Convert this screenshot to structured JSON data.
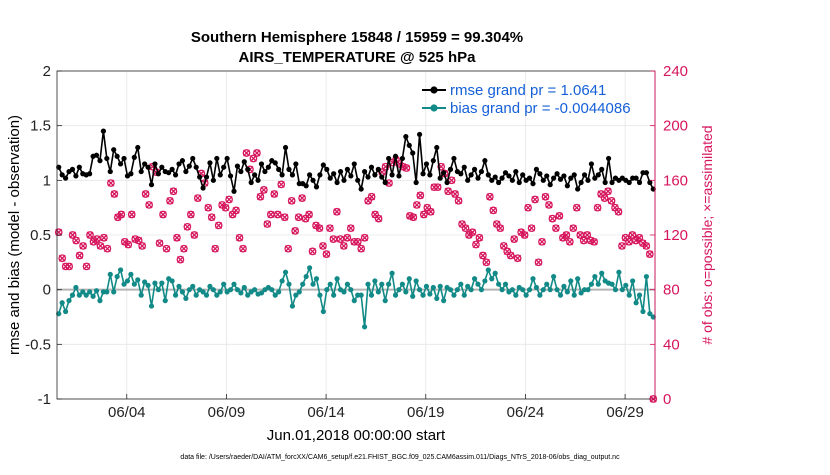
{
  "chart_data": {
    "type": "line",
    "title": "Southern Hemisphere 15848 / 15959 = 99.304%",
    "subtitle": "AIRS_TEMPERATURE @ 525 hPa",
    "xlabel": "Jun.01,2018 00:00:00 start",
    "ylabel": "rmse and bias (model - observation)",
    "ylabel_right": "# of obs: o=possible; ×=assimilated",
    "footer": "data file: /Users/raeder/DAI/ATM_forcXX/CAM6_setup/f.e21.FHIST_BGC.f09_025.CAM6assim.011/Diags_NTrS_2018-06/obs_diag_output.nc",
    "x_range_days": [
      0,
      30
    ],
    "ylim": [
      -1,
      2
    ],
    "ylim_right": [
      0,
      240
    ],
    "x_tick_labels": [
      {
        "day": 3.5,
        "label": "06/04"
      },
      {
        "day": 8.5,
        "label": "06/09"
      },
      {
        "day": 13.5,
        "label": "06/14"
      },
      {
        "day": 18.5,
        "label": "06/19"
      },
      {
        "day": 23.5,
        "label": "06/24"
      },
      {
        "day": 28.5,
        "label": "06/29"
      }
    ],
    "y_ticks_left": [
      "-1",
      "-0.5",
      "0",
      "0.5",
      "1",
      "1.5",
      "2"
    ],
    "y_ticks_right": [
      "0",
      "40",
      "80",
      "120",
      "160",
      "200",
      "240"
    ],
    "legend": [
      {
        "name": "rmse grand pr = 1.0641",
        "color": "#000000"
      },
      {
        "name": "bias grand pr = -0.0044086",
        "color": "#128a87"
      }
    ],
    "colors": {
      "rmse": "#000000",
      "bias": "#128a87",
      "obs": "#d6155c",
      "zero_line": "#b5b5b5",
      "grid": "#e6e6e6"
    },
    "series": [
      {
        "name": "rmse",
        "values": [
          1.12,
          1.05,
          1.02,
          1.08,
          1.1,
          1.04,
          1.12,
          1.06,
          1.05,
          1.06,
          1.22,
          1.23,
          1.18,
          1.45,
          1.2,
          1.08,
          1.28,
          1.22,
          1.15,
          1.2,
          1.04,
          1.06,
          1.21,
          1.3,
          1.08,
          1.15,
          1.12,
          0.96,
          1.15,
          1.06,
          1.12,
          1.08,
          1.07,
          1.1,
          1.05,
          1.15,
          1.18,
          1.08,
          1.13,
          1.2,
          1.12,
          1.03,
          0.93,
          1.03,
          1.16,
          1.0,
          1.2,
          1.05,
          1.12,
          1.2,
          1.04,
          0.9,
          1.13,
          1.08,
          1.17,
          1.1,
          0.98,
          1.05,
          1.0,
          1.15,
          1.08,
          1.12,
          1.18,
          1.16,
          1.1,
          1.05,
          1.3,
          1.1,
          1.05,
          1.15,
          0.97,
          0.97,
          0.95,
          1.05,
          1.0,
          0.94,
          1.05,
          1.14,
          1.1,
          1.02,
          1.06,
          0.98,
          1.08,
          1.0,
          1.1,
          1.04,
          1.15,
          1.0,
          0.92,
          1.08,
          1.03,
          1.12,
          1.05,
          1.1,
          1.03,
          0.98,
          1.2,
          1.05,
          1.22,
          1.04,
          1.2,
          1.4,
          1.32,
          1.25,
          0.98,
          1.42,
          1.06,
          1.15,
          1.05,
          1.18,
          1.3,
          1.02,
          1.07,
          0.98,
          1.1,
          1.2,
          1.08,
          1.06,
          1.12,
          1.0,
          1.05,
          1.1,
          1.02,
          1.08,
          1.18,
          1.05,
          1.0,
          1.03,
          0.98,
          1.02,
          1.07,
          1.04,
          1.0,
          1.08,
          0.98,
          1.05,
          1.0,
          1.02,
          0.97,
          1.1,
          1.06,
          1.0,
          1.04,
          0.96,
          1.02,
          1.06,
          1.01,
          1.04,
          0.95,
          1.02,
          1.05,
          0.92,
          0.98,
          1.05,
          1.0,
          1.15,
          1.02,
          1.05,
          1.1,
          0.98,
          1.2,
          0.98,
          1.02,
          1.0,
          1.02,
          1.0,
          0.98,
          1.02,
          1.02,
          0.98,
          1.07,
          1.07,
          0.98,
          0.92
        ]
      },
      {
        "name": "bias",
        "values": [
          -0.22,
          -0.12,
          -0.2,
          -0.1,
          -0.05,
          0.02,
          -0.05,
          -0.02,
          -0.05,
          -0.02,
          -0.06,
          -0.01,
          -0.1,
          -0.02,
          -0.02,
          0.14,
          -0.02,
          0.12,
          0.18,
          0.05,
          0.08,
          0.14,
          0.05,
          0.09,
          -0.05,
          0.07,
          0.04,
          -0.15,
          0.06,
          0.0,
          0.06,
          -0.1,
          0.1,
          0.08,
          -0.05,
          0.03,
          -0.02,
          -0.08,
          0.0,
          0.03,
          -0.05,
          0.0,
          -0.02,
          -0.05,
          0.03,
          0.0,
          -0.05,
          -0.02,
          0.05,
          -0.02,
          0.0,
          0.05,
          0.0,
          -0.03,
          0.02,
          -0.05,
          -0.02,
          0.0,
          -0.04,
          -0.03,
          0.0,
          0.02,
          0.0,
          -0.05,
          -0.02,
          0.08,
          0.16,
          0.05,
          -0.15,
          -0.05,
          -0.02,
          0.05,
          0.12,
          0.2,
          0.05,
          0.1,
          -0.05,
          -0.2,
          0.0,
          0.05,
          -0.05,
          0.1,
          0.0,
          -0.02,
          0.05,
          0.0,
          -0.1,
          -0.05,
          -0.05,
          -0.34,
          0.05,
          -0.05,
          0.08,
          -0.02,
          0.05,
          -0.1,
          0.05,
          0.15,
          -0.05,
          0.0,
          0.05,
          -0.02,
          0.1,
          -0.06,
          0.08,
          0.0,
          -0.05,
          0.03,
          -0.04,
          0.02,
          -0.08,
          0.03,
          -0.1,
          0.02,
          0.0,
          -0.05,
          0.0,
          0.05,
          -0.05,
          0.03,
          0.0,
          0.1,
          0.05,
          0.0,
          0.08,
          0.18,
          0.1,
          0.15,
          0.05,
          0.0,
          0.05,
          -0.02,
          0.0,
          -0.05,
          0.02,
          0.0,
          -0.05,
          0.0,
          0.1,
          0.02,
          -0.05,
          0.0,
          0.05,
          0.0,
          0.12,
          0.0,
          -0.05,
          0.03,
          -0.02,
          0.08,
          -0.05,
          0.1,
          -0.03,
          0.0,
          0.0,
          0.05,
          0.12,
          0.05,
          0.15,
          0.08,
          0.06,
          0.05,
          0.0,
          0.16,
          0.0,
          0.04,
          -0.05,
          0.08,
          -0.12,
          -0.05,
          -0.2,
          0.12,
          -0.22,
          -0.25
        ]
      },
      {
        "name": "obs_count",
        "values": [
          122,
          103,
          97,
          97,
          120,
          116,
          105,
          112,
          97,
          120,
          115,
          117,
          112,
          118,
          110,
          158,
          150,
          133,
          135,
          115,
          113,
          135,
          117,
          116,
          112,
          150,
          142,
          170,
          166,
          114,
          135,
          110,
          145,
          152,
          118,
          102,
          110,
          126,
          135,
          120,
          147,
          165,
          158,
          140,
          133,
          110,
          127,
          142,
          140,
          146,
          135,
          138,
          118,
          110,
          180,
          168,
          176,
          180,
          148,
          153,
          128,
          135,
          150,
          135,
          157,
          133,
          110,
          145,
          123,
          133,
          147,
          132,
          135,
          108,
          127,
          125,
          112,
          106,
          125,
          117,
          137,
          117,
          112,
          118,
          125,
          115,
          115,
          110,
          118,
          145,
          148,
          135,
          132,
          166,
          170,
          158,
          173,
          175,
          172,
          170,
          169,
          134,
          133,
          142,
          149,
          135,
          140,
          137,
          155,
          155,
          170,
          165,
          152,
          160,
          150,
          145,
          128,
          125,
          120,
          122,
          113,
          118,
          105,
          100,
          148,
          138,
          128,
          125,
          112,
          108,
          105,
          117,
          103,
          122,
          120,
          140,
          125,
          146,
          100,
          115,
          148,
          142,
          132,
          125,
          134,
          118,
          120,
          115,
          125,
          140,
          120,
          116,
          120,
          116,
          115,
          140,
          150,
          147,
          152,
          145,
          140,
          137,
          112,
          118,
          115,
          120,
          116,
          118,
          114,
          112,
          106,
          0
        ]
      }
    ]
  }
}
